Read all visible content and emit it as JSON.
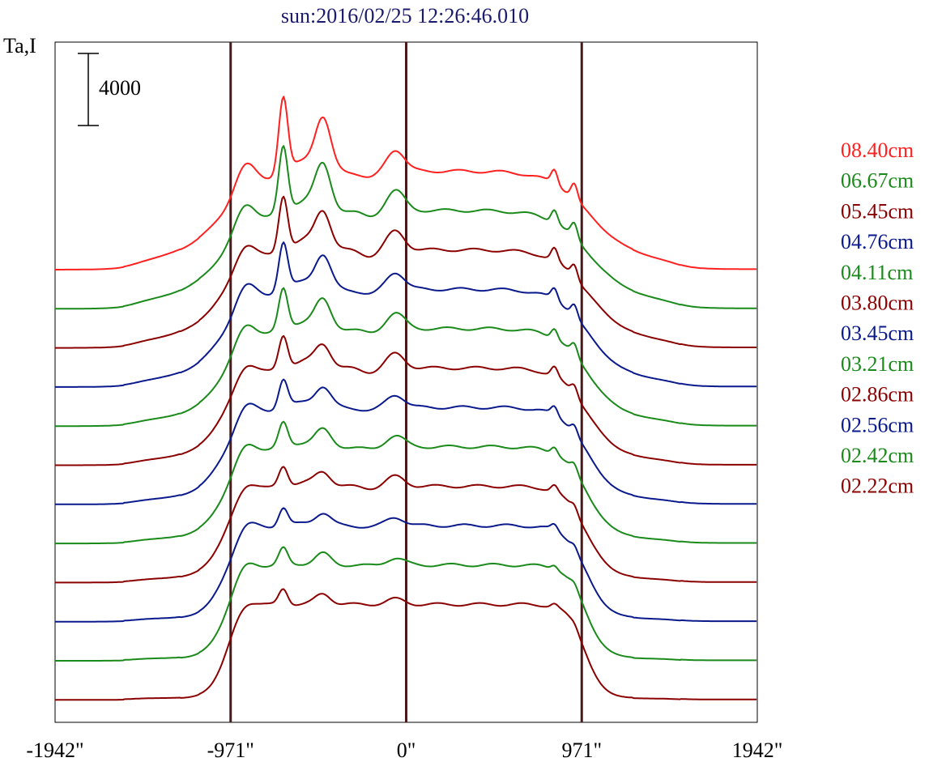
{
  "chart_data": {
    "type": "line",
    "title": "sun:2016/02/25 12:26:46.010",
    "ylabel": "Ta,I",
    "scale_bar": {
      "label": "4000",
      "value": 4000
    },
    "x_unit": "arcsec",
    "xlim": [
      -1942,
      1942
    ],
    "x_ticks": [
      {
        "value": -1942,
        "label": "-1942\""
      },
      {
        "value": -971,
        "label": "-971\""
      },
      {
        "value": 0,
        "label": "0\""
      },
      {
        "value": 971,
        "label": "971\""
      },
      {
        "value": 1942,
        "label": "1942\""
      }
    ],
    "reference_lines_x": [
      -971,
      0,
      971
    ],
    "grid": false,
    "legend_position": "right",
    "legend": [
      {
        "label": "08.40cm",
        "color": "#ff2020"
      },
      {
        "label": "06.67cm",
        "color": "#1a8a1a"
      },
      {
        "label": "05.45cm",
        "color": "#8b0000"
      },
      {
        "label": "04.76cm",
        "color": "#0a1a8c"
      },
      {
        "label": "04.11cm",
        "color": "#1a8a1a"
      },
      {
        "label": "03.80cm",
        "color": "#8b0000"
      },
      {
        "label": "03.45cm",
        "color": "#0a1a8c"
      },
      {
        "label": "03.21cm",
        "color": "#1a8a1a"
      },
      {
        "label": "02.86cm",
        "color": "#8b0000"
      },
      {
        "label": "02.56cm",
        "color": "#0a1a8c"
      },
      {
        "label": "02.42cm",
        "color": "#1a8a1a"
      },
      {
        "label": "02.22cm",
        "color": "#8b0000"
      }
    ],
    "series_colors": [
      "#ff2020",
      "#1a8a1a",
      "#8b0000",
      "#0a1a8c"
    ],
    "series_count": 12,
    "offset_between_traces": 1950,
    "profile_shape_x": [
      -1942,
      -1560,
      -1250,
      -1150,
      -1050,
      -971,
      -960,
      -900,
      -820,
      -700,
      -650,
      -590,
      -540,
      -470,
      -400,
      -330,
      -250,
      -190,
      -150,
      -80,
      0,
      100,
      300,
      420,
      540,
      650,
      720,
      780,
      840,
      860,
      900,
      940,
      971,
      1000,
      1050,
      1150,
      1250,
      1520,
      1942
    ],
    "trace_style": {
      "colors": [
        "#ff2020",
        "#1a8a1a",
        "#8b0000",
        "#0a1a8c"
      ]
    }
  },
  "colors": {
    "title": "#1a1a6e",
    "axis": "#000000",
    "reference_line": "#4a1a1a"
  }
}
